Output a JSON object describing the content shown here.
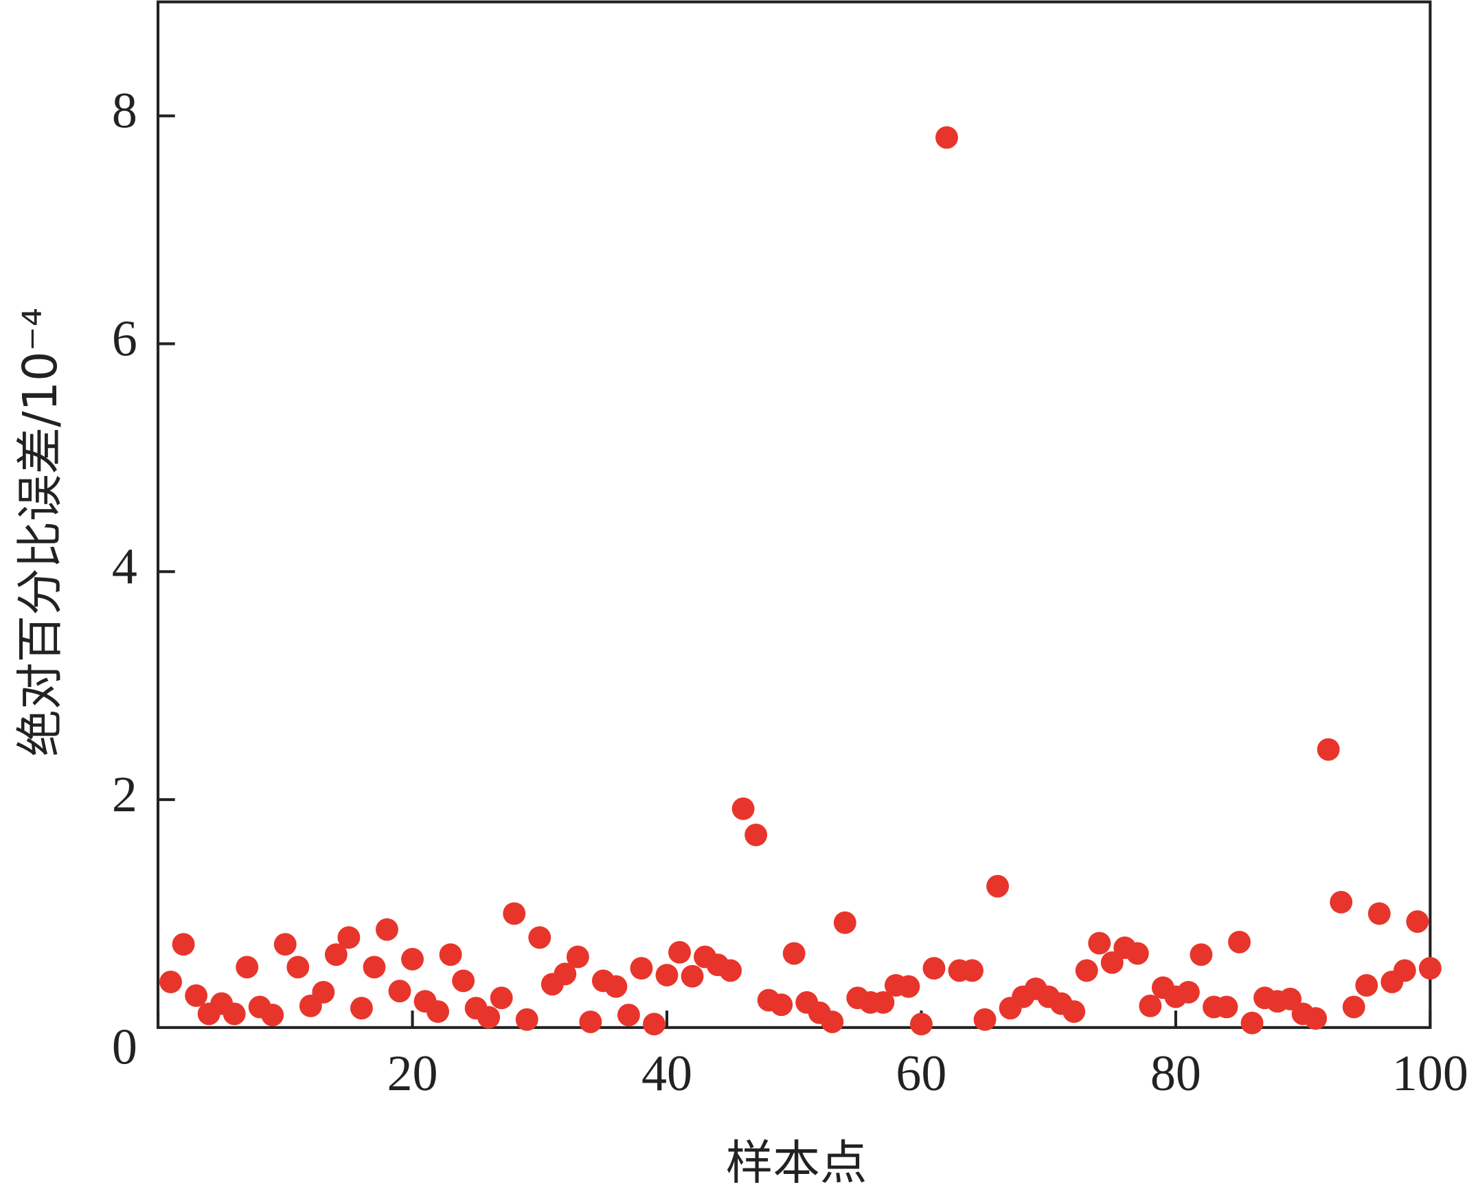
{
  "chart_data": {
    "type": "scatter",
    "x_label": "样本点",
    "y_label": "绝对百分比误差/10⁻⁴",
    "color": "#e8352b",
    "x": [
      1,
      2,
      3,
      4,
      5,
      6,
      7,
      8,
      9,
      10,
      11,
      12,
      13,
      14,
      15,
      16,
      17,
      18,
      19,
      20,
      21,
      22,
      23,
      24,
      25,
      26,
      27,
      28,
      29,
      30,
      31,
      32,
      33,
      34,
      35,
      36,
      37,
      38,
      39,
      40,
      41,
      42,
      43,
      44,
      45,
      46,
      47,
      48,
      49,
      50,
      51,
      52,
      53,
      54,
      55,
      56,
      57,
      58,
      59,
      60,
      61,
      62,
      63,
      64,
      65,
      66,
      67,
      68,
      69,
      70,
      71,
      72,
      73,
      74,
      75,
      76,
      77,
      78,
      79,
      80,
      81,
      82,
      83,
      84,
      85,
      86,
      87,
      88,
      89,
      90,
      91,
      92,
      93,
      94,
      95,
      96,
      97,
      98,
      99,
      100
    ],
    "values": [
      0.4,
      0.73,
      0.28,
      0.12,
      0.21,
      0.12,
      0.53,
      0.18,
      0.11,
      0.73,
      0.53,
      0.19,
      0.31,
      0.64,
      0.79,
      0.17,
      0.53,
      0.86,
      0.32,
      0.6,
      0.23,
      0.14,
      0.64,
      0.41,
      0.17,
      0.09,
      0.26,
      1.0,
      0.07,
      0.79,
      0.38,
      0.47,
      0.62,
      0.05,
      0.41,
      0.36,
      0.11,
      0.52,
      0.03,
      0.46,
      0.66,
      0.45,
      0.62,
      0.55,
      0.5,
      1.92,
      1.69,
      0.24,
      0.2,
      0.65,
      0.22,
      0.13,
      0.05,
      0.92,
      0.26,
      0.22,
      0.22,
      0.37,
      0.36,
      0.03,
      0.52,
      7.81,
      0.5,
      0.5,
      0.07,
      1.24,
      0.17,
      0.27,
      0.34,
      0.27,
      0.21,
      0.14,
      0.5,
      0.74,
      0.57,
      0.7,
      0.65,
      0.19,
      0.35,
      0.27,
      0.31,
      0.64,
      0.18,
      0.18,
      0.75,
      0.04,
      0.26,
      0.23,
      0.25,
      0.12,
      0.08,
      2.44,
      1.1,
      0.18,
      0.37,
      1.0,
      0.4,
      0.5,
      0.93,
      0.52
    ],
    "xlim": [
      0,
      100
    ],
    "xticks": [
      0,
      20,
      40,
      60,
      80,
      100
    ],
    "ylim": [
      0,
      9
    ],
    "yticks": [
      2,
      4,
      6,
      8
    ]
  }
}
